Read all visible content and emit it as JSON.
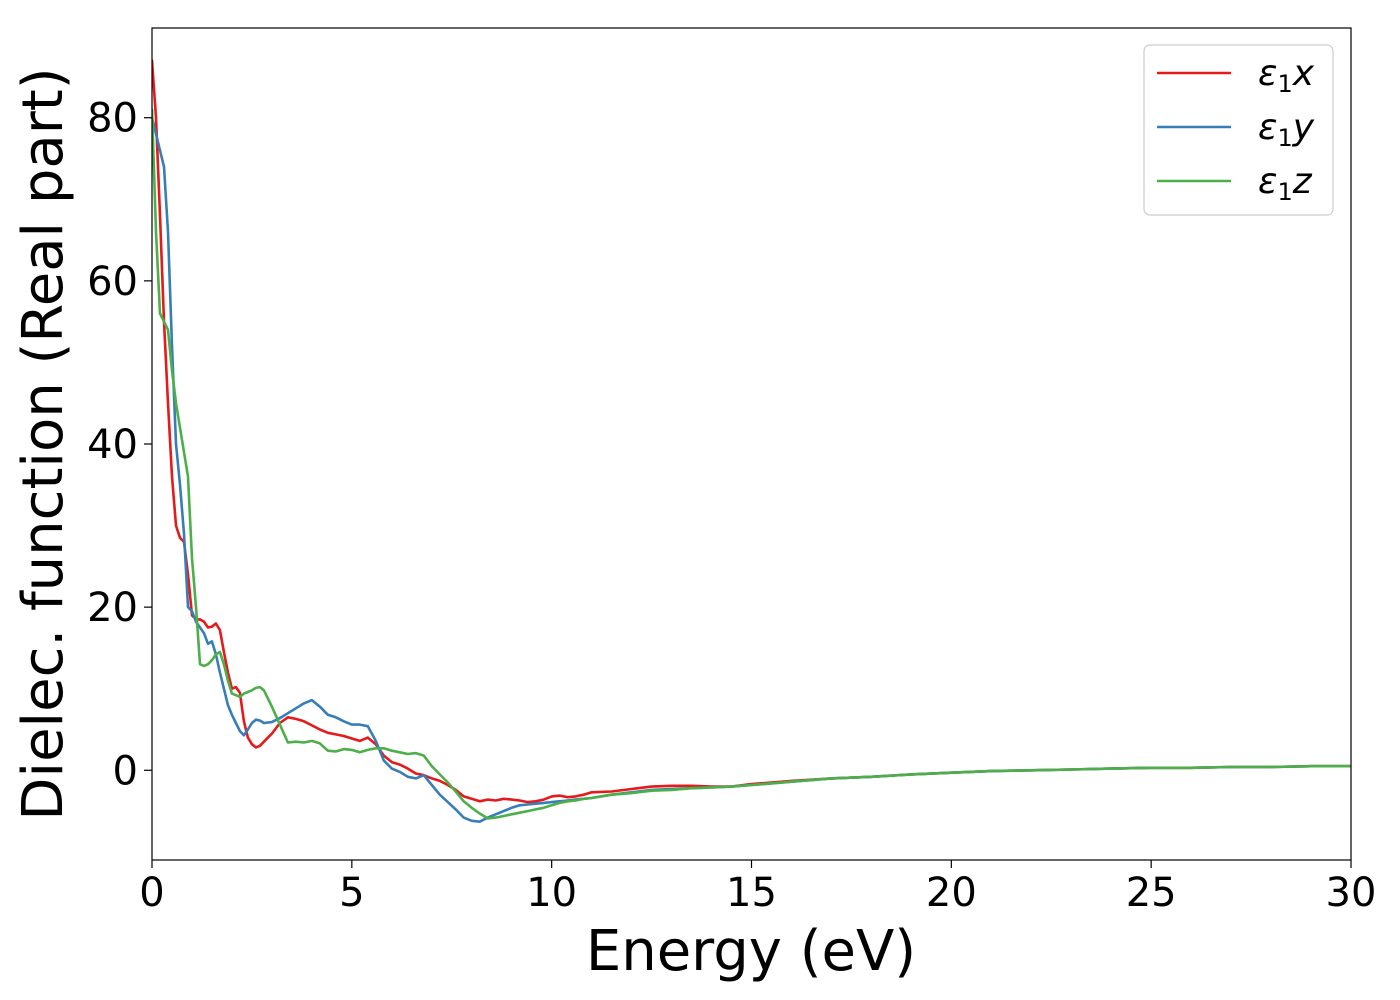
{
  "chart_data": {
    "type": "line",
    "title": "",
    "xlabel": "Energy (eV)",
    "ylabel": "Dielec. function (Real part)",
    "xlim": [
      0,
      30
    ],
    "ylim": [
      -11,
      91
    ],
    "xticks": [
      0,
      5,
      10,
      15,
      20,
      25,
      30
    ],
    "yticks": [
      0,
      20,
      40,
      60,
      80
    ],
    "grid": false,
    "legend_position": "top-right",
    "series": [
      {
        "name": "ε1x",
        "symbol": "ε",
        "sub": "1",
        "axis": "x",
        "color": "#e41a1c",
        "x": [
          0,
          0.1,
          0.2,
          0.3,
          0.4,
          0.5,
          0.6,
          0.7,
          0.8,
          0.9,
          1.0,
          1.1,
          1.2,
          1.3,
          1.4,
          1.5,
          1.6,
          1.7,
          1.8,
          1.9,
          2.0,
          2.1,
          2.2,
          2.3,
          2.4,
          2.5,
          2.6,
          2.7,
          2.8,
          3.0,
          3.2,
          3.4,
          3.6,
          3.8,
          4.0,
          4.2,
          4.4,
          4.6,
          4.8,
          5.0,
          5.2,
          5.4,
          5.6,
          5.8,
          6.0,
          6.2,
          6.4,
          6.6,
          6.8,
          7.0,
          7.2,
          7.4,
          7.6,
          7.8,
          8.0,
          8.2,
          8.4,
          8.6,
          8.8,
          9.0,
          9.2,
          9.4,
          9.6,
          9.8,
          10.0,
          10.2,
          10.4,
          10.6,
          10.8,
          11.0,
          11.5,
          12.0,
          12.5,
          13.0,
          13.5,
          14.0,
          14.5,
          15.0,
          16.0,
          17.0,
          18.0,
          19.0,
          20.0,
          21.0,
          22.0,
          23.0,
          24.0,
          25.0,
          26.0,
          27.0,
          28.0,
          29.0,
          30.0
        ],
        "y": [
          87,
          80,
          68,
          55,
          45,
          36,
          30,
          28.5,
          28,
          24,
          19,
          18.5,
          18.5,
          18.2,
          17.5,
          17.6,
          18,
          17.2,
          14.5,
          12,
          10,
          10.2,
          9.5,
          6,
          4,
          3.2,
          2.8,
          3,
          3.5,
          4.5,
          5.8,
          6.5,
          6.3,
          6,
          5.5,
          5,
          4.6,
          4.4,
          4.2,
          3.9,
          3.6,
          4,
          3.2,
          1.8,
          1.0,
          0.7,
          0.2,
          -0.4,
          -0.6,
          -1.0,
          -1.3,
          -1.8,
          -2.4,
          -3.2,
          -3.5,
          -3.8,
          -3.6,
          -3.7,
          -3.5,
          -3.6,
          -3.7,
          -3.9,
          -3.8,
          -3.6,
          -3.2,
          -3.1,
          -3.3,
          -3.2,
          -3.0,
          -2.7,
          -2.6,
          -2.3,
          -2.0,
          -1.9,
          -1.9,
          -2.0,
          -2.0,
          -1.7,
          -1.3,
          -1.0,
          -0.8,
          -0.5,
          -0.3,
          -0.1,
          0.0,
          0.1,
          0.2,
          0.3,
          0.3,
          0.4,
          0.4,
          0.5,
          0.5
        ]
      },
      {
        "name": "ε1y",
        "symbol": "ε",
        "sub": "1",
        "axis": "y",
        "color": "#377eb8",
        "x": [
          0,
          0.1,
          0.2,
          0.3,
          0.4,
          0.5,
          0.6,
          0.7,
          0.8,
          0.9,
          1.0,
          1.1,
          1.2,
          1.3,
          1.4,
          1.5,
          1.6,
          1.7,
          1.8,
          1.9,
          2.0,
          2.1,
          2.2,
          2.3,
          2.4,
          2.5,
          2.6,
          2.7,
          2.8,
          3.0,
          3.2,
          3.4,
          3.6,
          3.8,
          4.0,
          4.2,
          4.4,
          4.6,
          4.8,
          5.0,
          5.2,
          5.4,
          5.6,
          5.8,
          6.0,
          6.2,
          6.4,
          6.6,
          6.8,
          7.0,
          7.2,
          7.4,
          7.6,
          7.8,
          8.0,
          8.2,
          8.4,
          8.6,
          8.8,
          9.0,
          9.2,
          9.4,
          9.6,
          9.8,
          10.0,
          10.2,
          10.4,
          10.6,
          10.8,
          11.0,
          11.5,
          12.0,
          12.5,
          13.0,
          13.5,
          14.0,
          14.5,
          15.0,
          16.0,
          17.0,
          18.0,
          19.0,
          20.0,
          21.0,
          22.0,
          23.0,
          24.0,
          25.0,
          26.0,
          27.0,
          28.0,
          29.0,
          30.0
        ],
        "y": [
          80,
          78,
          76,
          74,
          66,
          52,
          40,
          35,
          29,
          20,
          19.5,
          18.2,
          17.5,
          16.8,
          15.5,
          15.8,
          14.2,
          12,
          10,
          8,
          6.8,
          5.8,
          4.8,
          4.3,
          5,
          5.8,
          6.2,
          6.1,
          5.8,
          5.9,
          6.4,
          7,
          7.6,
          8.2,
          8.6,
          7.8,
          6.8,
          6.5,
          6.0,
          5.6,
          5.6,
          5.4,
          3.6,
          1.2,
          0.2,
          -0.2,
          -0.8,
          -1.0,
          -0.6,
          -1.8,
          -3.0,
          -3.9,
          -4.8,
          -5.8,
          -6.2,
          -6.3,
          -5.8,
          -5.4,
          -5.0,
          -4.6,
          -4.3,
          -4.2,
          -4.1,
          -4.0,
          -3.9,
          -3.8,
          -3.7,
          -3.6,
          -3.5,
          -3.4,
          -3.0,
          -2.7,
          -2.4,
          -2.3,
          -2.2,
          -2.1,
          -2.0,
          -1.8,
          -1.4,
          -1.0,
          -0.8,
          -0.5,
          -0.3,
          -0.1,
          0.0,
          0.1,
          0.2,
          0.3,
          0.3,
          0.4,
          0.4,
          0.5,
          0.5
        ]
      },
      {
        "name": "ε1z",
        "symbol": "ε",
        "sub": "1",
        "axis": "z",
        "color": "#4daf4a",
        "x": [
          0,
          0.1,
          0.2,
          0.3,
          0.4,
          0.5,
          0.6,
          0.7,
          0.8,
          0.9,
          1.0,
          1.1,
          1.2,
          1.3,
          1.4,
          1.5,
          1.6,
          1.7,
          1.8,
          1.9,
          2.0,
          2.1,
          2.2,
          2.3,
          2.4,
          2.5,
          2.6,
          2.7,
          2.8,
          3.0,
          3.2,
          3.4,
          3.6,
          3.8,
          4.0,
          4.2,
          4.4,
          4.6,
          4.8,
          5.0,
          5.2,
          5.4,
          5.6,
          5.8,
          6.0,
          6.2,
          6.4,
          6.6,
          6.8,
          7.0,
          7.2,
          7.4,
          7.6,
          7.8,
          8.0,
          8.2,
          8.4,
          8.6,
          8.8,
          9.0,
          9.2,
          9.4,
          9.6,
          9.8,
          10.0,
          10.2,
          10.4,
          10.6,
          10.8,
          11.0,
          11.5,
          12.0,
          12.5,
          13.0,
          13.5,
          14.0,
          14.5,
          15.0,
          16.0,
          17.0,
          18.0,
          19.0,
          20.0,
          21.0,
          22.0,
          23.0,
          24.0,
          25.0,
          26.0,
          27.0,
          28.0,
          29.0,
          30.0
        ],
        "y": [
          81,
          66,
          56,
          55,
          54,
          49,
          45,
          42,
          39,
          36,
          26,
          20,
          13,
          12.8,
          13,
          13.5,
          14.2,
          14.5,
          13,
          11,
          9.4,
          9.2,
          9.0,
          9.4,
          9.6,
          9.8,
          10.1,
          10.2,
          9.8,
          7.8,
          5.6,
          3.4,
          3.5,
          3.4,
          3.6,
          3.3,
          2.4,
          2.3,
          2.6,
          2.5,
          2.2,
          2.5,
          2.7,
          2.7,
          2.4,
          2.2,
          2.0,
          2.1,
          1.8,
          0.5,
          -0.5,
          -1.5,
          -2.6,
          -3.8,
          -4.6,
          -5.3,
          -5.9,
          -5.8,
          -5.6,
          -5.4,
          -5.2,
          -5.0,
          -4.8,
          -4.6,
          -4.3,
          -4.0,
          -3.8,
          -3.7,
          -3.5,
          -3.4,
          -3.0,
          -2.8,
          -2.5,
          -2.4,
          -2.2,
          -2.1,
          -2.0,
          -1.8,
          -1.4,
          -1.0,
          -0.8,
          -0.5,
          -0.3,
          -0.1,
          0.0,
          0.1,
          0.2,
          0.3,
          0.3,
          0.4,
          0.4,
          0.5,
          0.5
        ]
      }
    ]
  }
}
